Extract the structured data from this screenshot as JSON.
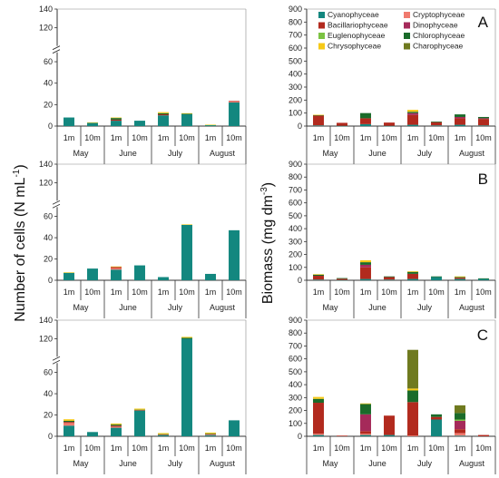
{
  "figure": {
    "left_ylabel": "Number of cells (N mL",
    "left_ylabel_sup": "-1",
    "left_ylabel_end": ")",
    "right_ylabel": "Biomass (mg dm",
    "right_ylabel_sup": "-3",
    "right_ylabel_end": ")"
  },
  "legend": [
    {
      "name": "Cyanophyceae",
      "color": "#13877f"
    },
    {
      "name": "Cryptophyceae",
      "color": "#f07a6e"
    },
    {
      "name": "Bacillariophyceae",
      "color": "#b22a1e"
    },
    {
      "name": "Dinophyceae",
      "color": "#a52a5a"
    },
    {
      "name": "Euglenophyceae",
      "color": "#7cc243"
    },
    {
      "name": "Chlorophyceae",
      "color": "#1a6b2a"
    },
    {
      "name": "Chrysophyceae",
      "color": "#f6c918"
    },
    {
      "name": "Charophyceae",
      "color": "#6f7a1f"
    }
  ],
  "categories": [
    "1m",
    "10m",
    "1m",
    "10m",
    "1m",
    "10m",
    "1m",
    "10m"
  ],
  "months": [
    "May",
    "June",
    "July",
    "August"
  ],
  "chart_data": [
    {
      "type": "bar",
      "stacked": true,
      "panel": "",
      "ylim": [
        0,
        140
      ],
      "yticks": [
        0,
        20,
        40,
        60,
        120,
        140
      ],
      "axis_break": [
        65,
        115
      ],
      "series": [
        {
          "name": "Cyanophyceae",
          "values": [
            8,
            3,
            5,
            5,
            10,
            11,
            1,
            22
          ]
        },
        {
          "name": "Cryptophyceae",
          "values": [
            0,
            0,
            0,
            0,
            0,
            0,
            0,
            1
          ]
        },
        {
          "name": "Bacillariophyceae",
          "values": [
            0,
            0,
            1,
            0,
            1,
            0,
            0,
            0.5
          ]
        },
        {
          "name": "Chlorophyceae",
          "values": [
            0,
            0,
            1.5,
            0,
            1,
            0.5,
            0,
            0
          ]
        },
        {
          "name": "Chrysophyceae",
          "values": [
            0,
            0.5,
            0.5,
            0,
            1,
            0.5,
            0.3,
            0
          ]
        }
      ]
    },
    {
      "type": "bar",
      "stacked": true,
      "panel": "",
      "ylim": [
        0,
        140
      ],
      "yticks": [
        0,
        20,
        40,
        60,
        120,
        140
      ],
      "axis_break": [
        65,
        115
      ],
      "series": [
        {
          "name": "Cyanophyceae",
          "values": [
            7,
            11,
            10,
            14,
            3,
            52,
            6,
            47
          ]
        },
        {
          "name": "Cryptophyceae",
          "values": [
            0,
            0,
            1.5,
            0,
            0,
            0,
            0,
            0
          ]
        },
        {
          "name": "Bacillariophyceae",
          "values": [
            0,
            0,
            1,
            0,
            0,
            0,
            0,
            0
          ]
        },
        {
          "name": "Chrysophyceae",
          "values": [
            0.5,
            0,
            0.5,
            0,
            0,
            0.5,
            0,
            0
          ]
        }
      ]
    },
    {
      "type": "bar",
      "stacked": true,
      "panel": "",
      "ylim": [
        0,
        140
      ],
      "yticks": [
        0,
        20,
        40,
        60,
        120,
        140
      ],
      "axis_break": [
        65,
        115
      ],
      "series": [
        {
          "name": "Cyanophyceae",
          "values": [
            10,
            4,
            8,
            24,
            1,
            120,
            1,
            15
          ]
        },
        {
          "name": "Cryptophyceae",
          "values": [
            2.5,
            0,
            1,
            0,
            0,
            0,
            0.5,
            0
          ]
        },
        {
          "name": "Bacillariophyceae",
          "values": [
            1,
            0,
            1,
            0.5,
            0.5,
            0,
            0.5,
            0
          ]
        },
        {
          "name": "Chlorophyceae",
          "values": [
            1,
            0,
            1,
            0.5,
            0.5,
            1,
            0.5,
            0
          ]
        },
        {
          "name": "Chrysophyceae",
          "values": [
            1.5,
            0,
            1,
            1,
            1,
            1,
            1,
            0
          ]
        }
      ]
    },
    {
      "type": "bar",
      "stacked": true,
      "panel": "A",
      "ylim": [
        0,
        900
      ],
      "yticks": [
        0,
        100,
        200,
        300,
        400,
        500,
        600,
        700,
        800,
        900
      ],
      "series": [
        {
          "name": "Cyanophyceae",
          "values": [
            5,
            2,
            15,
            2,
            10,
            5,
            10,
            5
          ]
        },
        {
          "name": "Bacillariophyceae",
          "values": [
            75,
            23,
            45,
            25,
            75,
            25,
            50,
            50
          ]
        },
        {
          "name": "Dinophyceae",
          "values": [
            0,
            0,
            0,
            0,
            15,
            0,
            10,
            5
          ]
        },
        {
          "name": "Chlorophyceae",
          "values": [
            5,
            0,
            40,
            0,
            10,
            5,
            20,
            10
          ]
        },
        {
          "name": "Chrysophyceae",
          "values": [
            2,
            0,
            0,
            0,
            15,
            0,
            0,
            0
          ]
        }
      ]
    },
    {
      "type": "bar",
      "stacked": true,
      "panel": "B",
      "ylim": [
        0,
        900
      ],
      "yticks": [
        0,
        100,
        200,
        300,
        400,
        500,
        600,
        700,
        800,
        900
      ],
      "series": [
        {
          "name": "Cyanophyceae",
          "values": [
            5,
            2,
            10,
            5,
            10,
            25,
            10,
            10
          ]
        },
        {
          "name": "Bacillariophyceae",
          "values": [
            30,
            10,
            90,
            20,
            40,
            0,
            10,
            0
          ]
        },
        {
          "name": "Dinophyceae",
          "values": [
            0,
            0,
            20,
            0,
            0,
            0,
            0,
            0
          ]
        },
        {
          "name": "Chlorophyceae",
          "values": [
            10,
            5,
            20,
            5,
            15,
            5,
            5,
            5
          ]
        },
        {
          "name": "Chrysophyceae",
          "values": [
            2,
            0,
            15,
            0,
            5,
            0,
            5,
            0
          ]
        }
      ]
    },
    {
      "type": "bar",
      "stacked": true,
      "panel": "C",
      "ylim": [
        0,
        900
      ],
      "yticks": [
        0,
        100,
        200,
        300,
        400,
        500,
        600,
        700,
        800,
        900
      ],
      "series": [
        {
          "name": "Cyanophyceae",
          "values": [
            10,
            0,
            10,
            10,
            0,
            130,
            5,
            0
          ]
        },
        {
          "name": "Cryptophyceae",
          "values": [
            10,
            0,
            10,
            0,
            5,
            0,
            20,
            0
          ]
        },
        {
          "name": "Bacillariophyceae",
          "values": [
            240,
            5,
            20,
            150,
            260,
            20,
            30,
            10
          ]
        },
        {
          "name": "Dinophyceae",
          "values": [
            0,
            0,
            130,
            0,
            0,
            0,
            65,
            0
          ]
        },
        {
          "name": "Euglenophyceae",
          "values": [
            0,
            0,
            0,
            0,
            0,
            0,
            10,
            0
          ]
        },
        {
          "name": "Chlorophyceae",
          "values": [
            30,
            0,
            80,
            0,
            90,
            20,
            50,
            0
          ]
        },
        {
          "name": "Chrysophyceae",
          "values": [
            15,
            0,
            5,
            0,
            15,
            0,
            0,
            0
          ]
        },
        {
          "name": "Charophyceae",
          "values": [
            0,
            0,
            0,
            0,
            300,
            0,
            60,
            0
          ]
        }
      ]
    }
  ]
}
